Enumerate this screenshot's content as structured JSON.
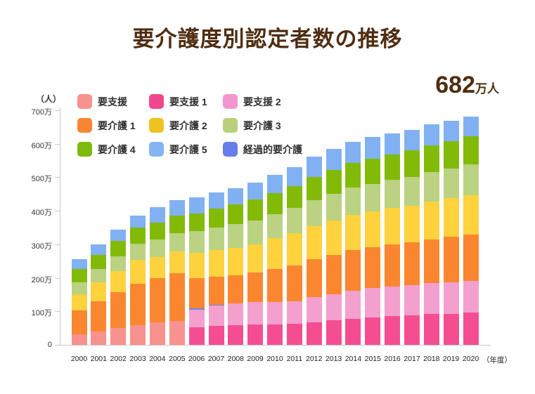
{
  "page": {
    "title": "要介護度別認定者数の推移"
  },
  "axis": {
    "y_unit": "（人）",
    "x_unit": "（年度）",
    "y_tick_labels": [
      "0",
      "100万",
      "200万",
      "300万",
      "400万",
      "500万",
      "600万",
      "700万"
    ]
  },
  "chart_data": {
    "type": "bar",
    "stacked": true,
    "title": "要介護度別認定者数の推移",
    "value_unit": "万人",
    "ylabel": "（人）",
    "xlabel": "（年度）",
    "ylim": [
      0,
      700
    ],
    "grid": false,
    "legend_position": "top-left",
    "annotation": {
      "value": "682",
      "unit": "万人"
    },
    "categories": [
      "2000",
      "2001",
      "2002",
      "2003",
      "2004",
      "2005",
      "2006",
      "2007",
      "2008",
      "2009",
      "2010",
      "2011",
      "2012",
      "2013",
      "2014",
      "2015",
      "2016",
      "2017",
      "2018",
      "2019",
      "2020"
    ],
    "stack_order": [
      "要支援",
      "要支援 1",
      "要支援 2",
      "経過的要介護",
      "要介護 1",
      "要介護 2",
      "要介護 3",
      "要介護 4",
      "要介護 5"
    ],
    "series": [
      {
        "name": "要支援",
        "color": "#F7928E",
        "legend_color": "#F7928E",
        "values": [
          32,
          40,
          50,
          59,
          67,
          72,
          0,
          0,
          0,
          0,
          0,
          0,
          0,
          0,
          0,
          0,
          0,
          0,
          0,
          0,
          0
        ]
      },
      {
        "name": "要支援 1",
        "color": "#F44E91",
        "legend_color": "#F2478F",
        "values": [
          0,
          0,
          0,
          0,
          0,
          0,
          53,
          56,
          58,
          60,
          61,
          63,
          68,
          73,
          78,
          82,
          87,
          88,
          92,
          93,
          96
        ]
      },
      {
        "name": "要支援 2",
        "color": "#F3A0CF",
        "legend_color": "#F197CE",
        "values": [
          0,
          0,
          0,
          0,
          0,
          0,
          52,
          62,
          65,
          68,
          66,
          68,
          74,
          78,
          84,
          87,
          88,
          90,
          93,
          94,
          95
        ]
      },
      {
        "name": "要介護 1",
        "color": "#FB8630",
        "legend_color": "#FA8532",
        "values": [
          70,
          89,
          107,
          124,
          133,
          142,
          89,
          84,
          85,
          87,
          100,
          106,
          113,
          118,
          121,
          122,
          124,
          127,
          130,
          135,
          139
        ]
      },
      {
        "name": "要介護 2",
        "color": "#FFD23E",
        "legend_color": "#EDC41F",
        "values": [
          49,
          57,
          64,
          71,
          62,
          64,
          75,
          78,
          82,
          85,
          92,
          97,
          100,
          102,
          105,
          107,
          109,
          111,
          113,
          116,
          117
        ]
      },
      {
        "name": "要介護 3",
        "color": "#BAD281",
        "legend_color": "#B8D07B",
        "values": [
          36,
          40,
          43,
          47,
          53,
          55,
          65,
          68,
          70,
          71,
          71,
          74,
          77,
          79,
          81,
          82,
          84,
          85,
          87,
          88,
          91
        ]
      },
      {
        "name": "要介護 4",
        "color": "#82BA08",
        "legend_color": "#7EB90D",
        "values": [
          39,
          42,
          46,
          49,
          50,
          52,
          54,
          56,
          59,
          63,
          63,
          66,
          68,
          71,
          74,
          76,
          77,
          79,
          81,
          82,
          85
        ]
      },
      {
        "name": "要介護 5",
        "color": "#81B1F2",
        "legend_color": "#84B4F2",
        "values": [
          29,
          31,
          33,
          35,
          45,
          47,
          47,
          48,
          48,
          50,
          54,
          57,
          61,
          63,
          63,
          64,
          63,
          61,
          62,
          61,
          59
        ]
      },
      {
        "name": "経過的要介護",
        "color": "#6F83EC",
        "legend_color": "#677EEA",
        "values": [
          0,
          0,
          0,
          0,
          0,
          0,
          5,
          2,
          0,
          0,
          0,
          0,
          0,
          0,
          0,
          0,
          0,
          0,
          0,
          0,
          0
        ]
      }
    ]
  }
}
